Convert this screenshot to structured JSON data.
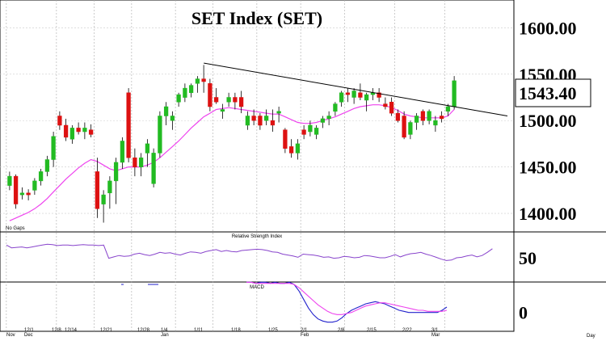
{
  "chart_data": [
    {
      "type": "candlestick",
      "title": "SET  Index  (SET)",
      "note": "No Gaps",
      "y_ticks": [
        "1600.00",
        "1550.00",
        "1500.00",
        "1450.00",
        "1400.00"
      ],
      "last_value": "1543.40",
      "ylim": [
        1380,
        1630
      ],
      "x_tick_labels": [
        "Nov",
        "12/1",
        "Dec",
        "12/8",
        "12/14",
        "12/21",
        "12/28",
        "1/4",
        "Jan",
        "1/11",
        "1/18",
        "1/25",
        "2/1",
        "Feb",
        "2/8",
        "2/15",
        "2/22",
        "3/1",
        "Mar"
      ],
      "x_axis_unit": "Day",
      "colors": {
        "up": "#22bb22",
        "down": "#dd1111",
        "ma": "#ee44ee",
        "trendline": "#000000"
      },
      "candles": [
        [
          1430,
          1445,
          1425,
          1440
        ],
        [
          1440,
          1442,
          1405,
          1410
        ],
        [
          1420,
          1428,
          1415,
          1422
        ],
        [
          1422,
          1426,
          1414,
          1420
        ],
        [
          1425,
          1438,
          1420,
          1435
        ],
        [
          1435,
          1448,
          1430,
          1445
        ],
        [
          1445,
          1462,
          1440,
          1458
        ],
        [
          1458,
          1488,
          1450,
          1483
        ],
        [
          1505,
          1510,
          1490,
          1495
        ],
        [
          1495,
          1502,
          1478,
          1482
        ],
        [
          1480,
          1495,
          1475,
          1492
        ],
        [
          1492,
          1498,
          1485,
          1488
        ],
        [
          1488,
          1498,
          1480,
          1492
        ],
        [
          1490,
          1496,
          1482,
          1485
        ],
        [
          1445,
          1460,
          1395,
          1405
        ],
        [
          1410,
          1425,
          1390,
          1420
        ],
        [
          1422,
          1440,
          1405,
          1435
        ],
        [
          1435,
          1460,
          1410,
          1455
        ],
        [
          1455,
          1482,
          1448,
          1478
        ],
        [
          1530,
          1535,
          1455,
          1460
        ],
        [
          1460,
          1470,
          1440,
          1450
        ],
        [
          1450,
          1465,
          1440,
          1460
        ],
        [
          1465,
          1480,
          1450,
          1475
        ],
        [
          1432,
          1470,
          1428,
          1465
        ],
        [
          1465,
          1510,
          1460,
          1505
        ],
        [
          1505,
          1520,
          1495,
          1515
        ],
        [
          1500,
          1510,
          1490,
          1505
        ],
        [
          1520,
          1530,
          1515,
          1528
        ],
        [
          1525,
          1540,
          1520,
          1535
        ],
        [
          1530,
          1540,
          1525,
          1538
        ],
        [
          1540,
          1548,
          1530,
          1545
        ],
        [
          1545,
          1560,
          1530,
          1542
        ],
        [
          1540,
          1545,
          1510,
          1515
        ],
        [
          1525,
          1535,
          1518,
          1520
        ],
        [
          1510,
          1518,
          1502,
          1512
        ],
        [
          1520,
          1530,
          1515,
          1525
        ],
        [
          1525,
          1530,
          1512,
          1520
        ],
        [
          1525,
          1532,
          1508,
          1515
        ],
        [
          1495,
          1510,
          1490,
          1505
        ],
        [
          1505,
          1512,
          1495,
          1500
        ],
        [
          1505,
          1508,
          1490,
          1495
        ],
        [
          1500,
          1512,
          1495,
          1505
        ],
        [
          1500,
          1512,
          1488,
          1495
        ],
        [
          1508,
          1515,
          1498,
          1510
        ],
        [
          1490,
          1492,
          1465,
          1470
        ],
        [
          1472,
          1480,
          1460,
          1465
        ],
        [
          1465,
          1480,
          1458,
          1475
        ],
        [
          1490,
          1495,
          1480,
          1485
        ],
        [
          1488,
          1500,
          1483,
          1495
        ],
        [
          1485,
          1495,
          1480,
          1492
        ],
        [
          1498,
          1505,
          1492,
          1502
        ],
        [
          1502,
          1510,
          1495,
          1505
        ],
        [
          1510,
          1520,
          1505,
          1518
        ],
        [
          1520,
          1532,
          1515,
          1530
        ],
        [
          1530,
          1535,
          1520,
          1528
        ],
        [
          1525,
          1535,
          1518,
          1532
        ],
        [
          1530,
          1540,
          1522,
          1525
        ],
        [
          1522,
          1530,
          1510,
          1528
        ],
        [
          1528,
          1535,
          1522,
          1530
        ],
        [
          1530,
          1535,
          1520,
          1525
        ],
        [
          1518,
          1525,
          1512,
          1515
        ],
        [
          1520,
          1525,
          1505,
          1508
        ],
        [
          1508,
          1512,
          1498,
          1500
        ],
        [
          1505,
          1510,
          1480,
          1482
        ],
        [
          1485,
          1500,
          1480,
          1498
        ],
        [
          1498,
          1508,
          1490,
          1505
        ],
        [
          1510,
          1512,
          1495,
          1500
        ],
        [
          1500,
          1512,
          1496,
          1510
        ],
        [
          1495,
          1505,
          1488,
          1500
        ],
        [
          1505,
          1510,
          1498,
          1502
        ],
        [
          1510,
          1518,
          1505,
          1515
        ],
        [
          1515,
          1548,
          1512,
          1543
        ]
      ],
      "moving_average": [
        1392,
        1395,
        1398,
        1401,
        1405,
        1410,
        1416,
        1423,
        1430,
        1437,
        1443,
        1449,
        1454,
        1458,
        1456,
        1452,
        1448,
        1446,
        1448,
        1450,
        1450,
        1450,
        1452,
        1455,
        1460,
        1466,
        1472,
        1478,
        1485,
        1492,
        1498,
        1504,
        1508,
        1512,
        1513,
        1514,
        1513,
        1512,
        1511,
        1510,
        1509,
        1508,
        1507,
        1507,
        1504,
        1501,
        1498,
        1497,
        1497,
        1498,
        1500,
        1502,
        1504,
        1507,
        1510,
        1513,
        1515,
        1516,
        1517,
        1517,
        1516,
        1514,
        1511,
        1507,
        1505,
        1504,
        1503,
        1503,
        1503,
        1503,
        1505,
        1512
      ],
      "trendline": {
        "start_index": 31,
        "start_value": 1562,
        "end_index": 79.5,
        "end_value": 1505
      }
    },
    {
      "type": "line",
      "title": "Relative Strength Index",
      "y_ticks": [
        "50"
      ],
      "ylim": [
        0,
        100
      ],
      "series": [
        {
          "values": [
            78,
            72,
            73,
            74,
            72,
            74,
            76,
            78,
            80,
            79,
            77,
            78,
            78,
            77,
            78,
            79,
            78,
            78,
            77,
            78,
            49,
            52,
            55,
            53,
            54,
            58,
            60,
            57,
            55,
            58,
            62,
            60,
            61,
            58,
            56,
            60,
            63,
            62,
            60,
            64,
            66,
            68,
            64,
            66,
            64,
            63,
            66,
            67,
            68,
            69,
            68,
            66,
            63,
            62,
            58,
            56,
            54,
            51,
            58,
            57,
            56,
            54,
            51,
            52,
            49,
            50,
            53,
            52,
            50,
            51,
            55,
            54,
            52,
            50,
            50,
            53,
            57,
            52,
            56,
            59,
            60,
            62,
            58,
            55,
            51,
            47,
            44,
            45,
            50,
            51,
            54,
            56,
            52,
            55,
            62,
            70
          ],
          "color": "#8844cc"
        }
      ]
    },
    {
      "type": "line",
      "title": "MACD",
      "y_ticks": [
        "0"
      ],
      "ylim": [
        -16,
        26
      ],
      "series": [
        {
          "values": [
            28,
            28,
            27,
            28,
            28,
            27,
            28,
            27,
            27,
            28,
            26,
            20,
            12,
            4,
            -2,
            -6,
            -8,
            -9,
            -9,
            -8,
            -5,
            -1,
            2,
            4,
            6,
            8,
            9,
            10,
            9,
            8,
            6,
            4,
            2,
            1,
            0,
            0,
            0,
            0,
            0,
            0,
            0,
            2,
            5
          ],
          "color": "#2222cc"
        },
        {
          "values": [
            28,
            28,
            27,
            27,
            27,
            27,
            27,
            27,
            27,
            27,
            26,
            23,
            19,
            15,
            11,
            7,
            4,
            1,
            -1,
            -2,
            -2,
            -1,
            0,
            2,
            4,
            6,
            7,
            8,
            9,
            9,
            8,
            7,
            6,
            5,
            4,
            3,
            2,
            2,
            1,
            1,
            1,
            1,
            2
          ],
          "color": "#ee44ee"
        }
      ]
    }
  ]
}
